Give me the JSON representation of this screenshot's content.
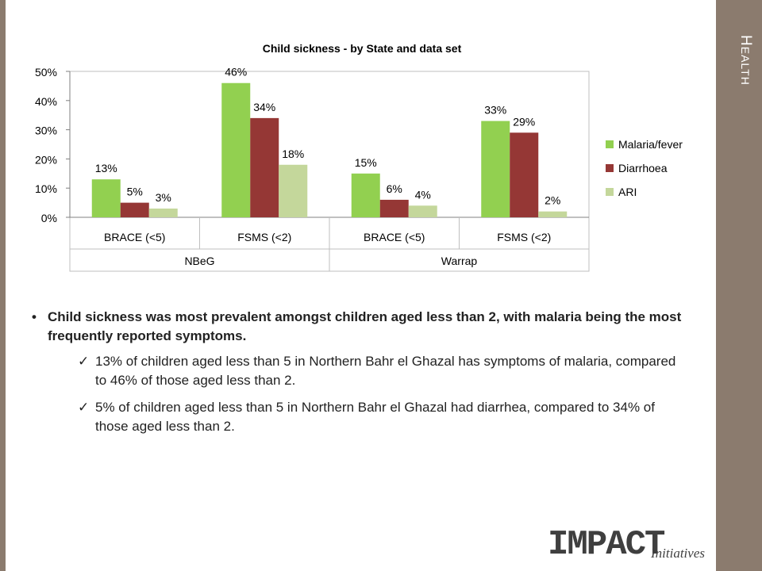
{
  "section_title": {
    "first": "H",
    "rest": "EALTH"
  },
  "chart_data": {
    "type": "bar",
    "title": "Child sickness - by State and data set",
    "categories": [
      "BRACE (<5)",
      "FSMS (<2)",
      "BRACE (<5)",
      "FSMS (<2)"
    ],
    "groups": [
      {
        "label": "NBeG",
        "categories": [
          0,
          1
        ]
      },
      {
        "label": "Warrap",
        "categories": [
          2,
          3
        ]
      }
    ],
    "series": [
      {
        "name": "Malaria/fever",
        "color": "#92d050",
        "values": [
          13,
          46,
          15,
          33
        ],
        "labels": [
          "13%",
          "46%",
          "15%",
          "33%"
        ]
      },
      {
        "name": "Diarrhoea",
        "color": "#953735",
        "values": [
          5,
          34,
          6,
          29
        ],
        "labels": [
          "5%",
          "34%",
          "6%",
          "29%"
        ]
      },
      {
        "name": "ARI",
        "color": "#c4d79b",
        "values": [
          3,
          18,
          4,
          2
        ],
        "labels": [
          "3%",
          "18%",
          "4%",
          "2%"
        ]
      }
    ],
    "ylim": [
      0,
      50
    ],
    "yticks": [
      "0%",
      "10%",
      "20%",
      "30%",
      "40%",
      "50%"
    ],
    "legend": "right",
    "grid": false
  },
  "bullets": {
    "main": "Child sickness was most prevalent amongst children aged less than 2, with malaria being the most frequently reported symptoms.",
    "sub1": "13% of children aged less than 5 in Northern Bahr el Ghazal has symptoms of malaria, compared to  46% of those aged less than 2.",
    "sub2": "5% of children aged less than 5 in Northern Bahr el Ghazal had diarrhea,  compared to 34% of those aged less than 2."
  },
  "logo": {
    "main": "IMPACT",
    "sub": "Initiatives"
  }
}
